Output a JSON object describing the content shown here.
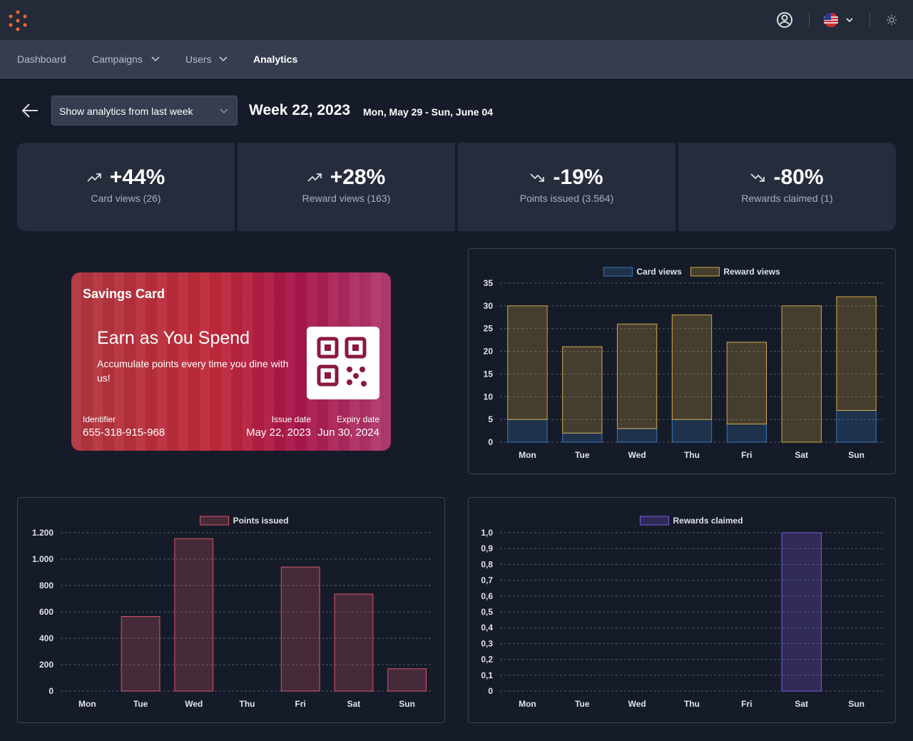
{
  "nav": {
    "items": [
      "Dashboard",
      "Campaigns",
      "Users",
      "Analytics"
    ]
  },
  "header": {
    "select": "Show analytics from last week",
    "title": "Week 22, 2023",
    "range": "Mon, May 29 - Sun, June 04"
  },
  "stats": [
    {
      "change": "+44%",
      "label": "Card views (26)",
      "trend": "up"
    },
    {
      "change": "+28%",
      "label": "Reward views (163)",
      "trend": "up"
    },
    {
      "change": "-19%",
      "label": "Points issued (3.564)",
      "trend": "down"
    },
    {
      "change": "-80%",
      "label": "Rewards claimed (1)",
      "trend": "down"
    }
  ],
  "card": {
    "name": "Savings Card",
    "headline": "Earn as You Spend",
    "text": "Accumulate points every time you dine with us!",
    "identifier_label": "Identifier",
    "identifier": "655-318-915-968",
    "issue_label": "Issue date",
    "issue": "May 22, 2023",
    "expiry_label": "Expiry date",
    "expiry": "Jun 30, 2024"
  },
  "chart_data": [
    {
      "type": "bar",
      "stacked": true,
      "grid": true,
      "categories": [
        "Mon",
        "Tue",
        "Wed",
        "Thu",
        "Fri",
        "Sat",
        "Sun"
      ],
      "series": [
        {
          "name": "Card views",
          "color": "#3a78b8",
          "values": [
            5,
            2,
            3,
            5,
            4,
            0,
            7
          ]
        },
        {
          "name": "Reward views",
          "color": "#d4a843",
          "values": [
            25,
            19,
            23,
            23,
            18,
            30,
            25
          ]
        }
      ],
      "ylim": [
        0,
        35
      ],
      "yticks": [
        0,
        5,
        10,
        15,
        20,
        25,
        30,
        35
      ]
    },
    {
      "type": "bar",
      "grid": true,
      "categories": [
        "Mon",
        "Tue",
        "Wed",
        "Thu",
        "Fri",
        "Sat",
        "Sun"
      ],
      "series": [
        {
          "name": "Points issued",
          "color": "#d9566e",
          "values": [
            0,
            565,
            1155,
            0,
            940,
            735,
            169
          ]
        }
      ],
      "ylim": [
        0,
        1200
      ],
      "yticks": [
        0,
        200,
        400,
        600,
        800,
        {
          "value": 1000,
          "label": "1.000"
        },
        {
          "value": 1200,
          "label": "1.200"
        }
      ]
    },
    {
      "type": "bar",
      "grid": true,
      "categories": [
        "Mon",
        "Tue",
        "Wed",
        "Thu",
        "Fri",
        "Sat",
        "Sun"
      ],
      "series": [
        {
          "name": "Rewards claimed",
          "color": "#7c5ce0",
          "values": [
            0,
            0,
            0,
            0,
            0,
            1,
            0
          ]
        }
      ],
      "ylim": [
        0,
        1
      ],
      "yticks": [
        0,
        {
          "value": 0.1,
          "label": "0,1"
        },
        {
          "value": 0.2,
          "label": "0,2"
        },
        {
          "value": 0.3,
          "label": "0,3"
        },
        {
          "value": 0.4,
          "label": "0,4"
        },
        {
          "value": 0.5,
          "label": "0,5"
        },
        {
          "value": 0.6,
          "label": "0,6"
        },
        {
          "value": 0.7,
          "label": "0,7"
        },
        {
          "value": 0.8,
          "label": "0,8"
        },
        {
          "value": 0.9,
          "label": "0,9"
        },
        {
          "value": 1,
          "label": "1,0"
        }
      ]
    }
  ]
}
